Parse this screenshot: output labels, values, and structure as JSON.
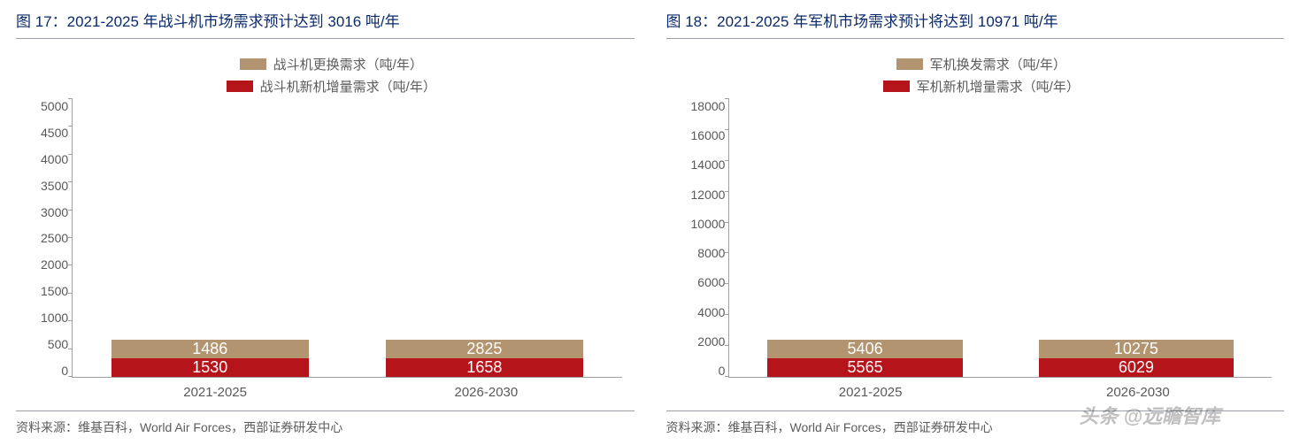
{
  "watermark": "头条 @远瞻智库",
  "left": {
    "title": "图 17：2021-2025 年战斗机市场需求预计达到 3016 吨/年",
    "source": "资料来源：维基百科，World Air Forces，西部证券研发中心",
    "chart": {
      "type": "stacked-bar",
      "background_color": "#ffffff",
      "axis_color": "#a0a0a0",
      "tick_label_color": "#595959",
      "tick_fontsize": 14,
      "value_label_fontsize": 18,
      "value_label_color": "#ffffff",
      "bar_width_ratio": 0.36,
      "ylim": [
        0,
        5000
      ],
      "ytick_step": 500,
      "yticks": [
        0,
        500,
        1000,
        1500,
        2000,
        2500,
        3000,
        3500,
        4000,
        4500,
        5000
      ],
      "categories": [
        "2021-2025",
        "2026-2030"
      ],
      "series": [
        {
          "name": "战斗机新机增量需求（吨/年）",
          "color": "#b5141b",
          "values": [
            1530,
            1658
          ]
        },
        {
          "name": "战斗机更换需求（吨/年）",
          "color": "#b29570",
          "values": [
            1486,
            2825
          ]
        }
      ],
      "legend_order": [
        "战斗机更换需求（吨/年）",
        "战斗机新机增量需求（吨/年）"
      ],
      "legend_fontsize": 15,
      "legend_text_color": "#5c5c5c"
    }
  },
  "right": {
    "title": "图 18：2021-2025 年军机市场需求预计将达到 10971 吨/年",
    "source": "资料来源：维基百科，World Air Forces，西部证券研发中心",
    "chart": {
      "type": "stacked-bar",
      "background_color": "#ffffff",
      "axis_color": "#a0a0a0",
      "tick_label_color": "#595959",
      "tick_fontsize": 14,
      "value_label_fontsize": 18,
      "value_label_color": "#ffffff",
      "bar_width_ratio": 0.36,
      "ylim": [
        0,
        18000
      ],
      "ytick_step": 2000,
      "yticks": [
        0,
        2000,
        4000,
        6000,
        8000,
        10000,
        12000,
        14000,
        16000,
        18000
      ],
      "categories": [
        "2021-2025",
        "2026-2030"
      ],
      "series": [
        {
          "name": "军机新机增量需求（吨/年）",
          "color": "#b5141b",
          "values": [
            5565,
            6029
          ]
        },
        {
          "name": "军机换发需求（吨/年）",
          "color": "#b29570",
          "values": [
            5406,
            10275
          ]
        }
      ],
      "legend_order": [
        "军机换发需求（吨/年）",
        "军机新机增量需求（吨/年）"
      ],
      "legend_fontsize": 15,
      "legend_text_color": "#5c5c5c"
    }
  }
}
